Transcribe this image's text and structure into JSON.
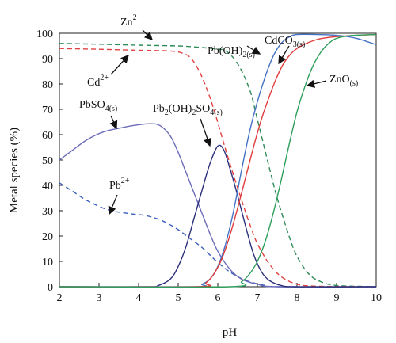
{
  "chart_data": {
    "type": "line",
    "xlabel": "pH",
    "ylabel": "Metal species (%)",
    "xlim": [
      2,
      10
    ],
    "ylim": [
      0,
      100
    ],
    "xticks": [
      2,
      3,
      4,
      5,
      6,
      7,
      8,
      9,
      10
    ],
    "yticks": [
      0,
      10,
      20,
      30,
      40,
      50,
      60,
      70,
      80,
      90,
      100
    ],
    "grid": false,
    "legend": "none",
    "series": [
      {
        "name": "Zn2+",
        "color": "#2e8b57",
        "dash": true,
        "points": [
          [
            2,
            96
          ],
          [
            3,
            95.7
          ],
          [
            4,
            95.3
          ],
          [
            5,
            95
          ],
          [
            5.5,
            94.5
          ],
          [
            5.9,
            93.9
          ],
          [
            6.2,
            93
          ],
          [
            6.5,
            88
          ],
          [
            6.8,
            78
          ],
          [
            7.0,
            66
          ],
          [
            7.3,
            47
          ],
          [
            7.5,
            35
          ],
          [
            7.8,
            20
          ],
          [
            8.0,
            12
          ],
          [
            8.3,
            5
          ],
          [
            8.6,
            2
          ],
          [
            9,
            0.5
          ],
          [
            10,
            0
          ]
        ]
      },
      {
        "name": "Cd2+",
        "color": "#e04040",
        "dash": true,
        "points": [
          [
            2,
            94
          ],
          [
            3,
            93.7
          ],
          [
            4,
            93.3
          ],
          [
            4.8,
            93
          ],
          [
            5.1,
            92.2
          ],
          [
            5.3,
            90.5
          ],
          [
            5.5,
            86
          ],
          [
            5.7,
            79
          ],
          [
            5.9,
            70
          ],
          [
            6.2,
            54
          ],
          [
            6.5,
            39
          ],
          [
            6.8,
            25
          ],
          [
            7.0,
            17
          ],
          [
            7.3,
            9
          ],
          [
            7.6,
            4
          ],
          [
            8,
            1
          ],
          [
            8.5,
            0.2
          ],
          [
            10,
            0
          ]
        ]
      },
      {
        "name": "Pb2+",
        "color": "#3a5fbf",
        "dash": true,
        "points": [
          [
            2,
            41
          ],
          [
            2.3,
            38
          ],
          [
            2.7,
            34
          ],
          [
            3.2,
            30.5
          ],
          [
            3.7,
            29
          ],
          [
            4.2,
            28
          ],
          [
            4.6,
            26
          ],
          [
            5,
            22.5
          ],
          [
            5.3,
            19
          ],
          [
            5.6,
            15.5
          ],
          [
            5.9,
            11
          ],
          [
            6.2,
            7
          ],
          [
            6.5,
            4
          ],
          [
            6.8,
            2
          ],
          [
            7.2,
            0.5
          ],
          [
            7.6,
            0
          ],
          [
            10,
            0
          ]
        ]
      },
      {
        "name": "PbSO4(s)",
        "color": "#6b6bb8",
        "dash": false,
        "points": [
          [
            2,
            50
          ],
          [
            2.3,
            53.5
          ],
          [
            2.7,
            58
          ],
          [
            3.1,
            61
          ],
          [
            3.5,
            62.5
          ],
          [
            3.9,
            63.7
          ],
          [
            4.3,
            64.3
          ],
          [
            4.55,
            63.5
          ],
          [
            4.8,
            59.5
          ],
          [
            5.0,
            53
          ],
          [
            5.2,
            45
          ],
          [
            5.4,
            37
          ],
          [
            5.6,
            29
          ],
          [
            5.8,
            21
          ],
          [
            6.0,
            14
          ],
          [
            6.3,
            7
          ],
          [
            6.6,
            3
          ],
          [
            7.0,
            1
          ],
          [
            7.5,
            0
          ],
          [
            10,
            0
          ]
        ]
      },
      {
        "name": "Pb2(OH)2SO4(s)",
        "color": "#2b2f7a",
        "dash": false,
        "points": [
          [
            2,
            0
          ],
          [
            4.2,
            0
          ],
          [
            4.5,
            0.5
          ],
          [
            4.8,
            3
          ],
          [
            5.0,
            8
          ],
          [
            5.2,
            16
          ],
          [
            5.4,
            27
          ],
          [
            5.6,
            38
          ],
          [
            5.8,
            48.5
          ],
          [
            6.0,
            55.5
          ],
          [
            6.15,
            54
          ],
          [
            6.3,
            47
          ],
          [
            6.5,
            36
          ],
          [
            6.7,
            24
          ],
          [
            6.9,
            13
          ],
          [
            7.1,
            6
          ],
          [
            7.3,
            2.5
          ],
          [
            7.6,
            0.5
          ],
          [
            8,
            0
          ],
          [
            10,
            0
          ]
        ]
      },
      {
        "name": "Pb(OH)2(s)",
        "color": "#4472c4",
        "dash": false,
        "points": [
          [
            2,
            0
          ],
          [
            5.4,
            0
          ],
          [
            5.6,
            1
          ],
          [
            5.8,
            3
          ],
          [
            6.0,
            8
          ],
          [
            6.2,
            17
          ],
          [
            6.4,
            30
          ],
          [
            6.6,
            46
          ],
          [
            6.8,
            61
          ],
          [
            7.0,
            73
          ],
          [
            7.2,
            83
          ],
          [
            7.4,
            91
          ],
          [
            7.6,
            96
          ],
          [
            7.8,
            98.5
          ],
          [
            8.0,
            99.5
          ],
          [
            8.5,
            99.5
          ],
          [
            9.0,
            99.2
          ],
          [
            9.5,
            98
          ],
          [
            10,
            95.5
          ]
        ]
      },
      {
        "name": "CdCO3(s)",
        "color": "#e03c3c",
        "dash": false,
        "points": [
          [
            2,
            0
          ],
          [
            5.5,
            0
          ],
          [
            5.7,
            1.5
          ],
          [
            5.9,
            5
          ],
          [
            6.1,
            11
          ],
          [
            6.3,
            20
          ],
          [
            6.5,
            31
          ],
          [
            6.7,
            43
          ],
          [
            6.9,
            55
          ],
          [
            7.1,
            66
          ],
          [
            7.3,
            75
          ],
          [
            7.5,
            83
          ],
          [
            7.7,
            89
          ],
          [
            8.0,
            94
          ],
          [
            8.5,
            97.5
          ],
          [
            9.0,
            98.7
          ],
          [
            9.5,
            99.2
          ],
          [
            10,
            99.5
          ]
        ]
      },
      {
        "name": "ZnO(s)",
        "color": "#2e9e5b",
        "dash": false,
        "points": [
          [
            2,
            0
          ],
          [
            6.3,
            0
          ],
          [
            6.6,
            2
          ],
          [
            6.8,
            5
          ],
          [
            7.0,
            10
          ],
          [
            7.2,
            18
          ],
          [
            7.4,
            29
          ],
          [
            7.6,
            42
          ],
          [
            7.8,
            56
          ],
          [
            8.0,
            69
          ],
          [
            8.2,
            79
          ],
          [
            8.4,
            87
          ],
          [
            8.6,
            92.5
          ],
          [
            8.8,
            96
          ],
          [
            9.0,
            98
          ],
          [
            9.3,
            99
          ],
          [
            9.6,
            99.3
          ],
          [
            10,
            99.5
          ]
        ]
      }
    ],
    "annotations": [
      {
        "key": "zn",
        "base": "Zn",
        "sup": "2+",
        "sub": ""
      },
      {
        "key": "cd",
        "base": "Cd",
        "sup": "2+",
        "sub": ""
      },
      {
        "key": "pbso4",
        "base": "PbSO",
        "sup": "",
        "sub": "4(s)"
      },
      {
        "key": "pb2",
        "base": "Pb",
        "sup": "2+",
        "sub": ""
      },
      {
        "key": "pb2oh2so4",
        "base": "Pb(OH)SO",
        "sup": "",
        "sub": ""
      },
      {
        "key": "pboh2",
        "base": "Pb(OH)",
        "sup": "",
        "sub": "2(s)"
      },
      {
        "key": "cdco3",
        "base": "CdCO",
        "sup": "",
        "sub": "3(s)"
      },
      {
        "key": "zno",
        "base": "ZnO",
        "sup": "",
        "sub": "(s)"
      }
    ],
    "pb2oh2so4_parts": [
      "Pb",
      "2",
      "(OH)",
      "2",
      "SO",
      "4(s)"
    ]
  }
}
